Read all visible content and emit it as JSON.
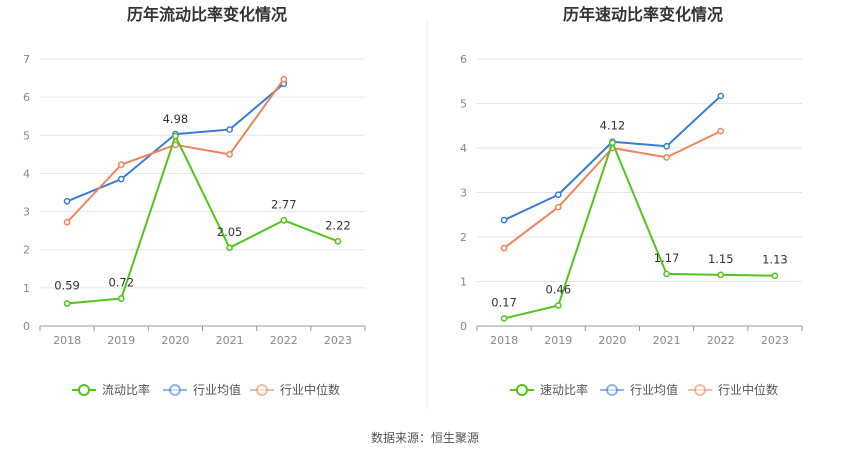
{
  "source_text": "数据来源：恒生聚源",
  "chart_data": [
    {
      "type": "line",
      "title": "历年流动比率变化情况",
      "categories": [
        "2018",
        "2019",
        "2020",
        "2021",
        "2022",
        "2023"
      ],
      "ylim": [
        0,
        7
      ],
      "yticks": [
        "0",
        "1",
        "2",
        "3",
        "4",
        "5",
        "6",
        "7"
      ],
      "grid": true,
      "legend_position": "bottom",
      "series": [
        {
          "name": "流动比率",
          "color": "#52c41a",
          "values": [
            0.59,
            0.72,
            4.98,
            2.05,
            2.77,
            2.22
          ],
          "labels": [
            "0.59",
            "0.72",
            "4.98",
            "2.05",
            "2.77",
            "2.22"
          ]
        },
        {
          "name": "行业均值",
          "color": "#3a7bd5",
          "values": [
            3.27,
            3.85,
            5.03,
            5.15,
            6.35,
            null
          ]
        },
        {
          "name": "行业中位数",
          "color": "#f0845a",
          "values": [
            2.72,
            4.23,
            4.75,
            4.5,
            6.47,
            null
          ]
        }
      ]
    },
    {
      "type": "line",
      "title": "历年速动比率变化情况",
      "categories": [
        "2018",
        "2019",
        "2020",
        "2021",
        "2022",
        "2023"
      ],
      "ylim": [
        0,
        6
      ],
      "yticks": [
        "0",
        "1",
        "2",
        "3",
        "4",
        "5",
        "6"
      ],
      "grid": true,
      "legend_position": "bottom",
      "series": [
        {
          "name": "速动比率",
          "color": "#52c41a",
          "values": [
            0.17,
            0.46,
            4.12,
            1.17,
            1.15,
            1.13
          ],
          "labels": [
            "0.17",
            "0.46",
            "4.12",
            "1.17",
            "1.15",
            "1.13"
          ]
        },
        {
          "name": "行业均值",
          "color": "#3a7bd5",
          "values": [
            2.38,
            2.95,
            4.14,
            4.04,
            5.17,
            null
          ]
        },
        {
          "name": "行业中位数",
          "color": "#f0845a",
          "values": [
            1.75,
            2.67,
            4.0,
            3.79,
            4.38,
            null
          ]
        }
      ]
    }
  ]
}
